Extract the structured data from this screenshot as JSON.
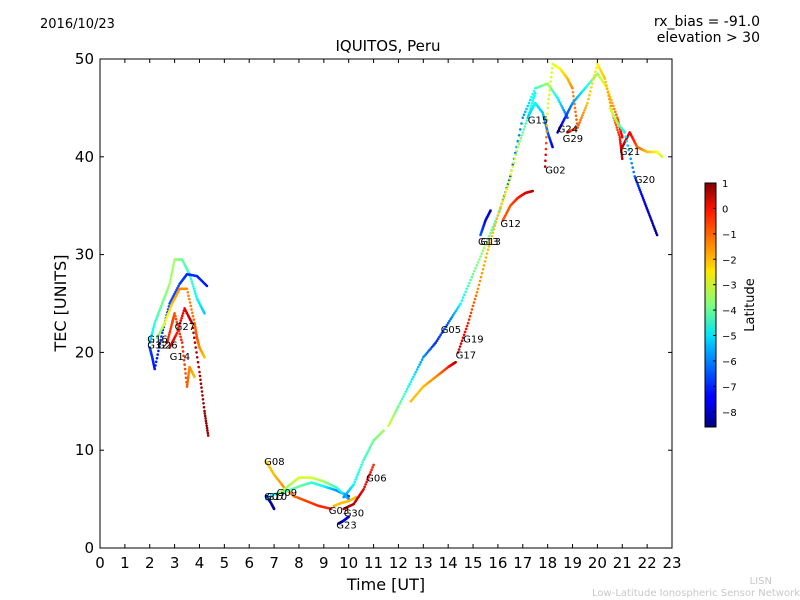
{
  "header": {
    "date": "2016/10/23",
    "title": "IQUITOS, Peru",
    "note_line1": "rx_bias = -91.0",
    "note_line2": "elevation > 30"
  },
  "footer": {
    "line1": "LISN",
    "line2": "Low-Latitude Ionospheric Sensor Network"
  },
  "chart_data": {
    "type": "scatter",
    "title": "IQUITOS, Peru",
    "xlabel": "Time [UT]",
    "ylabel": "TEC [UNITS]",
    "xlim": [
      0,
      23
    ],
    "ylim": [
      0,
      50
    ],
    "xticks": [
      0,
      1,
      2,
      3,
      4,
      5,
      6,
      7,
      8,
      9,
      10,
      11,
      12,
      13,
      14,
      15,
      16,
      17,
      18,
      19,
      20,
      21,
      22,
      23
    ],
    "yticks": [
      0,
      10,
      20,
      30,
      40,
      50
    ],
    "grid": false,
    "colorbar": {
      "label": "Latitude",
      "range": [
        -8.6,
        1
      ],
      "ticks": [
        1,
        0,
        -1,
        -2,
        -3,
        -4,
        -5,
        -6,
        -7,
        -8
      ],
      "colormap": "jet"
    },
    "series": [
      {
        "name": "G16",
        "points": [
          [
            2.0,
            21.0,
            -5.5
          ],
          [
            2.2,
            23.0,
            -4.5
          ],
          [
            2.5,
            25.0,
            -4.0
          ],
          [
            2.8,
            27.0,
            -3.5
          ],
          [
            3.0,
            29.5,
            -3.5
          ],
          [
            3.3,
            29.5,
            -4.0
          ],
          [
            3.6,
            28.0,
            -4.5
          ],
          [
            3.9,
            25.5,
            -5.0
          ],
          [
            4.2,
            24.0,
            -5.5
          ]
        ]
      },
      {
        "name": "G32",
        "points": [
          [
            2.0,
            20.5,
            -6.8
          ],
          [
            2.1,
            19.5,
            -7.0
          ],
          [
            2.2,
            18.3,
            -7.2
          ],
          [
            2.5,
            22.0,
            -7.0
          ],
          [
            2.8,
            25.0,
            -6.8
          ],
          [
            3.2,
            27.0,
            -6.8
          ],
          [
            3.5,
            28.0,
            -7.0
          ],
          [
            3.9,
            27.8,
            -7.0
          ],
          [
            4.3,
            26.8,
            -7.2
          ]
        ]
      },
      {
        "name": "G26",
        "points": [
          [
            2.3,
            21.5,
            -4.0
          ],
          [
            2.6,
            23.0,
            -3.0
          ],
          [
            2.9,
            25.0,
            -2.0
          ],
          [
            3.2,
            26.5,
            -1.5
          ],
          [
            3.5,
            26.5,
            -1.5
          ],
          [
            3.8,
            23.0,
            -1.2
          ],
          [
            3.9,
            21.5,
            -1.0
          ],
          [
            4.0,
            20.5,
            -1.5
          ],
          [
            4.2,
            19.5,
            -2.0
          ]
        ]
      },
      {
        "name": "G27",
        "points": [
          [
            2.7,
            21.0,
            -0.5
          ],
          [
            2.9,
            23.0,
            -0.8
          ],
          [
            3.0,
            24.0,
            -1.0
          ],
          [
            3.3,
            21.0,
            -0.5
          ],
          [
            3.5,
            16.5,
            -1.0
          ],
          [
            3.6,
            18.5,
            -1.5
          ],
          [
            3.8,
            17.5,
            -2.0
          ]
        ]
      },
      {
        "name": "G14",
        "points": [
          [
            2.8,
            20.5,
            0.5
          ],
          [
            3.1,
            22.0,
            -0.5
          ],
          [
            3.4,
            24.5,
            0.0
          ],
          [
            3.7,
            23.0,
            0.5
          ],
          [
            4.0,
            18.0,
            0.5
          ],
          [
            4.2,
            14.0,
            0.8
          ],
          [
            4.35,
            11.5,
            0.8
          ]
        ]
      },
      {
        "name": "G08",
        "points": [
          [
            6.7,
            8.8,
            -2.0
          ],
          [
            7.0,
            7.5,
            -2.0
          ],
          [
            7.4,
            6.2,
            -1.5
          ],
          [
            7.8,
            5.3,
            -1.2
          ],
          [
            8.3,
            4.8,
            -0.8
          ],
          [
            8.8,
            4.3,
            -0.5
          ],
          [
            9.3,
            4.0,
            -0.5
          ]
        ]
      },
      {
        "name": "G07",
        "points": [
          [
            6.7,
            5.3,
            -8.0
          ],
          [
            6.9,
            4.5,
            -8.3
          ],
          [
            7.0,
            4.0,
            -8.3
          ]
        ]
      },
      {
        "name": "G10",
        "points": [
          [
            6.7,
            5.0,
            -6.0
          ],
          [
            7.0,
            5.5,
            -5.0
          ],
          [
            7.5,
            5.8,
            -4.5
          ],
          [
            8.0,
            6.3,
            -4.0
          ],
          [
            8.5,
            6.7,
            -4.5
          ],
          [
            9.0,
            6.3,
            -5.0
          ],
          [
            9.5,
            5.9,
            -6.0
          ],
          [
            10.0,
            5.3,
            -7.0
          ]
        ]
      },
      {
        "name": "G09",
        "points": [
          [
            7.2,
            5.6,
            -3.5
          ],
          [
            7.6,
            6.4,
            -3.5
          ],
          [
            8.0,
            7.2,
            -3.0
          ],
          [
            8.5,
            7.2,
            -3.0
          ],
          [
            9.0,
            6.8,
            -3.5
          ],
          [
            9.5,
            6.2,
            -4.5
          ],
          [
            10.0,
            5.0,
            -6.0
          ]
        ]
      },
      {
        "name": "G03",
        "points": [
          [
            9.4,
            4.3,
            -2.0
          ],
          [
            9.7,
            4.6,
            -2.0
          ],
          [
            10.0,
            4.8,
            -2.0
          ],
          [
            10.3,
            5.2,
            -2.0
          ]
        ]
      },
      {
        "name": "G30",
        "points": [
          [
            9.8,
            4.0,
            0.5
          ],
          [
            10.2,
            4.5,
            0.5
          ],
          [
            10.6,
            6.0,
            0.0
          ],
          [
            11.0,
            8.5,
            -0.5
          ]
        ]
      },
      {
        "name": "G23",
        "points": [
          [
            9.6,
            2.5,
            -8.3
          ],
          [
            9.8,
            2.8,
            -8.0
          ],
          [
            10.0,
            3.2,
            -7.5
          ]
        ]
      },
      {
        "name": "G06",
        "points": [
          [
            9.8,
            5.2,
            -6.0
          ],
          [
            10.2,
            6.5,
            -5.0
          ],
          [
            10.6,
            9.0,
            -4.5
          ],
          [
            11.0,
            11.0,
            -4.0
          ],
          [
            11.4,
            12.0,
            -3.5
          ]
        ]
      },
      {
        "name": "G05",
        "points": [
          [
            11.6,
            12.5,
            -3.0
          ],
          [
            12.0,
            14.5,
            -4.0
          ],
          [
            12.5,
            17.0,
            -5.0
          ],
          [
            13.0,
            19.5,
            -6.0
          ],
          [
            13.5,
            21.0,
            -7.0
          ],
          [
            14.0,
            23.0,
            -6.5
          ],
          [
            14.5,
            25.0,
            -5.0
          ],
          [
            15.0,
            28.0,
            -4.0
          ],
          [
            15.5,
            31.0,
            -3.5
          ],
          [
            16.0,
            34.0,
            -5.0
          ],
          [
            16.5,
            38.0,
            -6.5
          ],
          [
            17.0,
            44.0,
            -6.0
          ],
          [
            17.5,
            47.0,
            -4.5
          ],
          [
            18.0,
            47.5,
            -3.5
          ],
          [
            18.4,
            46.0,
            -5.0
          ],
          [
            18.8,
            44.0,
            -6.5
          ]
        ]
      },
      {
        "name": "G19",
        "points": [
          [
            12.5,
            15.0,
            -2.0
          ],
          [
            13.0,
            16.5,
            -2.0
          ],
          [
            13.5,
            17.5,
            -1.5
          ],
          [
            14.0,
            18.5,
            -0.5
          ],
          [
            14.3,
            19.0,
            0.5
          ]
        ]
      },
      {
        "name": "G17",
        "points": [
          [
            14.4,
            20.0,
            0.5
          ],
          [
            14.8,
            23.0,
            -0.5
          ],
          [
            15.2,
            26.5,
            -1.5
          ],
          [
            15.6,
            30.5,
            -2.0
          ],
          [
            16.0,
            34.0,
            -2.0
          ],
          [
            16.4,
            37.0,
            -2.5
          ],
          [
            16.8,
            41.0,
            -3.5
          ],
          [
            17.2,
            44.0,
            -4.5
          ],
          [
            17.5,
            46.5,
            -5.0
          ]
        ]
      },
      {
        "name": "G13",
        "points": [
          [
            15.3,
            32.0,
            -6.5
          ],
          [
            15.5,
            33.5,
            -7.5
          ],
          [
            15.7,
            34.5,
            -8.0
          ]
        ]
      },
      {
        "name": "G12",
        "points": [
          [
            16.2,
            33.5,
            -1.0
          ],
          [
            16.5,
            35.0,
            -1.0
          ],
          [
            16.8,
            35.8,
            -0.5
          ],
          [
            17.1,
            36.3,
            0.0
          ],
          [
            17.4,
            36.5,
            0.5
          ]
        ]
      },
      {
        "name": "G15",
        "points": [
          [
            17.2,
            44.0,
            -5.5
          ],
          [
            17.5,
            45.5,
            -5.0
          ],
          [
            17.8,
            44.5,
            -5.5
          ],
          [
            18.0,
            42.5,
            -6.5
          ],
          [
            18.2,
            41.0,
            -7.5
          ]
        ]
      },
      {
        "name": "G02",
        "points": [
          [
            17.9,
            39.0,
            0.5
          ],
          [
            18.0,
            45.0,
            -3.0
          ],
          [
            18.2,
            49.5,
            -3.0
          ],
          [
            18.5,
            49.0,
            -2.5
          ],
          [
            18.8,
            48.0,
            -2.0
          ],
          [
            19.0,
            47.0,
            -1.5
          ],
          [
            19.2,
            43.0,
            -1.0
          ]
        ]
      },
      {
        "name": "G24",
        "points": [
          [
            18.4,
            42.5,
            -8.0
          ],
          [
            18.7,
            44.0,
            -7.0
          ],
          [
            19.0,
            45.5,
            -6.0
          ],
          [
            19.5,
            47.0,
            -5.0
          ],
          [
            20.0,
            48.5,
            -3.5
          ],
          [
            20.4,
            47.0,
            -2.5
          ],
          [
            20.8,
            44.0,
            -1.0
          ],
          [
            21.0,
            42.0,
            0.0
          ]
        ]
      },
      {
        "name": "G29",
        "points": [
          [
            18.8,
            42.5,
            -0.5
          ],
          [
            19.2,
            43.0,
            -1.0
          ],
          [
            19.6,
            45.5,
            -2.0
          ],
          [
            20.0,
            49.5,
            -2.5
          ],
          [
            20.3,
            48.0,
            -2.0
          ],
          [
            20.6,
            44.5,
            -1.5
          ],
          [
            20.9,
            42.0,
            -0.5
          ],
          [
            21.0,
            39.8,
            0.5
          ]
        ]
      },
      {
        "name": "G21",
        "points": [
          [
            21.0,
            41.0,
            0.5
          ],
          [
            21.3,
            42.5,
            0.0
          ],
          [
            21.6,
            41.0,
            -1.0
          ],
          [
            22.0,
            40.5,
            -2.0
          ],
          [
            22.4,
            40.5,
            -2.5
          ],
          [
            22.6,
            40.0,
            -3.0
          ]
        ]
      },
      {
        "name": "G20",
        "points": [
          [
            20.5,
            45.0,
            -3.0
          ],
          [
            20.8,
            43.5,
            -3.5
          ],
          [
            21.1,
            42.5,
            -5.0
          ],
          [
            21.5,
            38.0,
            -6.5
          ],
          [
            21.8,
            36.0,
            -7.5
          ],
          [
            22.1,
            34.0,
            -8.0
          ],
          [
            22.4,
            32.0,
            -8.3
          ]
        ]
      }
    ],
    "annotations": [
      {
        "text": "G16",
        "x": 1.9,
        "y": 21.0
      },
      {
        "text": "G32",
        "x": 1.9,
        "y": 20.4
      },
      {
        "text": "G26",
        "x": 2.3,
        "y": 20.4
      },
      {
        "text": "G27",
        "x": 3.0,
        "y": 22.3
      },
      {
        "text": "G14",
        "x": 2.8,
        "y": 19.2
      },
      {
        "text": "G08",
        "x": 6.6,
        "y": 8.5
      },
      {
        "text": "G07",
        "x": 6.6,
        "y": 4.9
      },
      {
        "text": "G10",
        "x": 6.7,
        "y": 4.9
      },
      {
        "text": "G09",
        "x": 7.1,
        "y": 5.3
      },
      {
        "text": "G03",
        "x": 9.2,
        "y": 3.5
      },
      {
        "text": "G13",
        "x": 15.2,
        "y": 31.0
      },
      {
        "text": "G23",
        "x": 9.5,
        "y": 2.0
      },
      {
        "text": "G30",
        "x": 9.8,
        "y": 3.2
      },
      {
        "text": "G06",
        "x": 10.7,
        "y": 6.8
      },
      {
        "text": "G05",
        "x": 13.7,
        "y": 22.0
      },
      {
        "text": "G19",
        "x": 14.6,
        "y": 21.0
      },
      {
        "text": "G17",
        "x": 14.3,
        "y": 19.4
      },
      {
        "text": "G13",
        "x": 15.3,
        "y": 31.0
      },
      {
        "text": "G12",
        "x": 16.1,
        "y": 32.8
      },
      {
        "text": "G15",
        "x": 17.2,
        "y": 43.4
      },
      {
        "text": "G02",
        "x": 17.9,
        "y": 38.3
      },
      {
        "text": "G24",
        "x": 18.4,
        "y": 42.5
      },
      {
        "text": "G29",
        "x": 18.6,
        "y": 41.5
      },
      {
        "text": "G21",
        "x": 20.9,
        "y": 40.2
      },
      {
        "text": "G20",
        "x": 21.5,
        "y": 37.3
      }
    ]
  }
}
